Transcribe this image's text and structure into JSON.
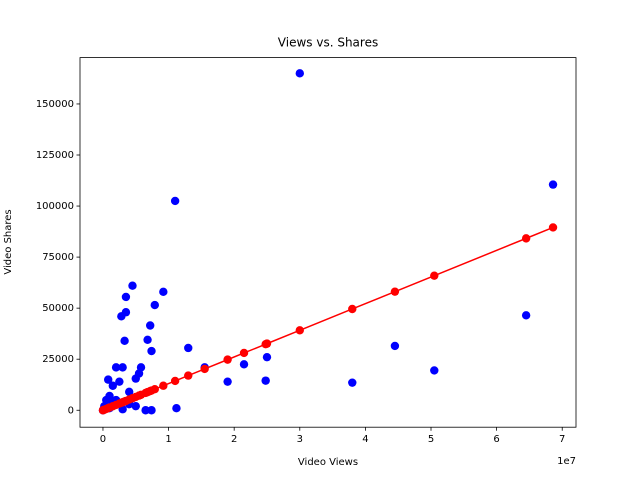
{
  "chart_data": {
    "type": "scatter",
    "title": "Views vs. Shares",
    "x_label": "Video Views",
    "y_label": "Video Shares",
    "x_offset_label": "1e7",
    "xlim": [
      -3500000,
      72100000
    ],
    "ylim": [
      -8300,
      172700
    ],
    "xticks": [
      0,
      {
        "value": 10000000,
        "label": "1"
      },
      {
        "value": 20000000,
        "label": "2"
      },
      {
        "value": 30000000,
        "label": "3"
      },
      {
        "value": 40000000,
        "label": "4"
      },
      {
        "value": 50000000,
        "label": "5"
      },
      {
        "value": 60000000,
        "label": "6"
      },
      {
        "value": 70000000,
        "label": "7"
      }
    ],
    "yticks": [
      0,
      25000,
      50000,
      75000,
      100000,
      125000,
      150000
    ],
    "series": [
      {
        "color": "#0000ff",
        "line": false,
        "x": [
          30000000,
          68600000,
          11000000,
          4500000,
          9200000,
          3500000,
          7900000,
          3500000,
          2800000,
          64500000,
          7200000,
          3300000,
          6800000,
          13000000,
          44500000,
          7400000,
          25000000,
          21500000,
          15500000,
          2000000,
          3000000,
          5800000,
          5500000,
          50500000,
          5000000,
          800000,
          2500000,
          19000000,
          24800000,
          38000000,
          1500000,
          4000000,
          1000000,
          500000,
          2000000,
          4000000,
          5000000,
          11200000,
          6500000,
          7400000,
          0,
          200000,
          1000000,
          3000000,
          1500000
        ],
        "values": [
          165000,
          110500,
          102500,
          61000,
          58000,
          55500,
          51500,
          48000,
          46000,
          46500,
          41500,
          34000,
          34500,
          30500,
          31500,
          29000,
          26000,
          22500,
          21000,
          21000,
          21000,
          21000,
          18000,
          19500,
          15500,
          15000,
          14000,
          14000,
          14500,
          13500,
          12000,
          9000,
          7000,
          5000,
          5000,
          3000,
          2000,
          1000,
          0,
          0,
          0,
          2000,
          1000,
          500,
          3500
        ]
      },
      {
        "color": "#ff0000",
        "line": true,
        "x": [
          0,
          200000,
          500000,
          800000,
          1000000,
          1500000,
          2000000,
          2500000,
          2800000,
          3000000,
          3300000,
          3500000,
          4000000,
          4500000,
          5000000,
          5500000,
          5800000,
          6500000,
          6800000,
          7200000,
          7400000,
          7900000,
          9200000,
          11000000,
          13000000,
          15500000,
          19000000,
          21500000,
          24800000,
          25000000,
          30000000,
          38000000,
          44500000,
          50500000,
          64500000,
          68600000
        ],
        "values": [
          0,
          261,
          653,
          1044,
          1305,
          1958,
          2610,
          3263,
          3654,
          3915,
          4307,
          4568,
          5220,
          5873,
          6525,
          7178,
          7569,
          8483,
          8874,
          9396,
          9657,
          10310,
          12006,
          14355,
          16965,
          20228,
          24795,
          28058,
          32364,
          32625,
          39150,
          49590,
          58073,
          65903,
          84173,
          89523
        ]
      }
    ]
  }
}
